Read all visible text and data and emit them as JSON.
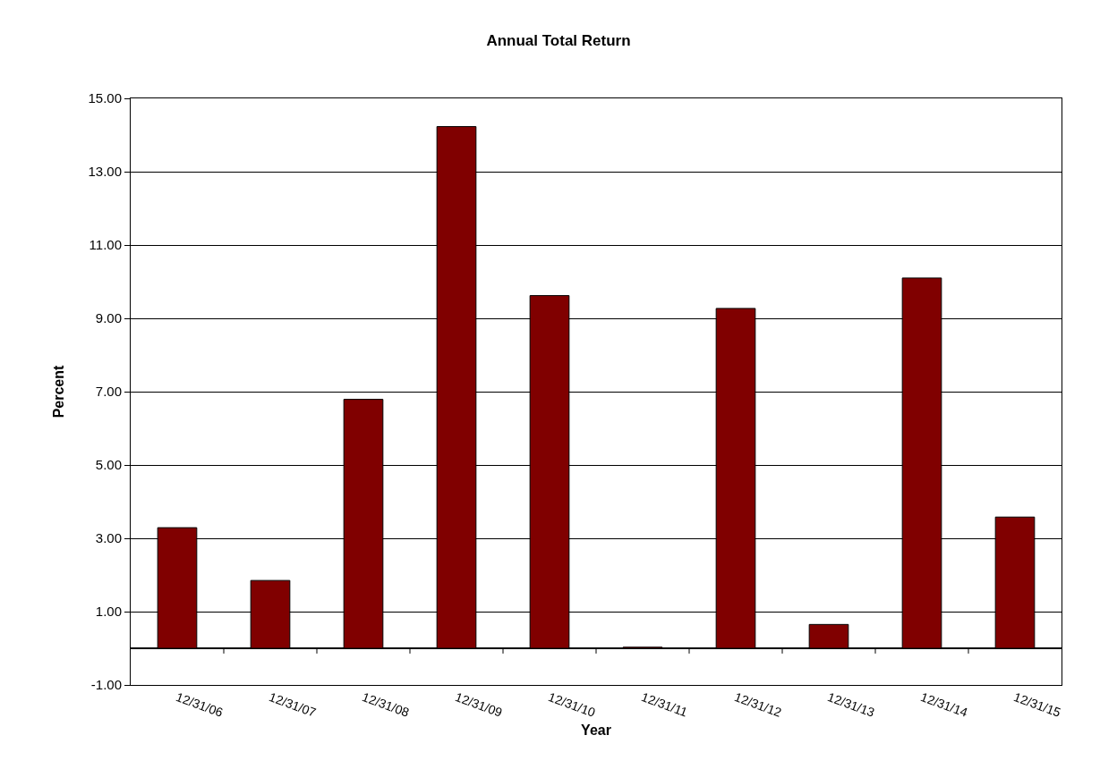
{
  "chart_data": {
    "type": "bar",
    "title": "Annual Total Return",
    "xlabel": "Year",
    "ylabel": "Percent",
    "categories": [
      "12/31/06",
      "12/31/07",
      "12/31/08",
      "12/31/09",
      "12/31/10",
      "12/31/11",
      "12/31/12",
      "12/31/13",
      "12/31/14",
      "12/31/15"
    ],
    "values": [
      3.29,
      1.85,
      6.79,
      14.23,
      9.62,
      0.03,
      9.27,
      0.65,
      10.1,
      3.58
    ],
    "color": "#800000",
    "ylim": [
      -1,
      15
    ],
    "yticks": [
      {
        "value": -1,
        "label": "-1.00"
      },
      {
        "value": 1,
        "label": "1.00"
      },
      {
        "value": 3,
        "label": "3.00"
      },
      {
        "value": 5,
        "label": "5.00"
      },
      {
        "value": 7,
        "label": "7.00"
      },
      {
        "value": 9,
        "label": "9.00"
      },
      {
        "value": 11,
        "label": "11.00"
      },
      {
        "value": 13,
        "label": "13.00"
      },
      {
        "value": 15,
        "label": "15.00"
      }
    ],
    "grid": "y",
    "legend": false
  }
}
